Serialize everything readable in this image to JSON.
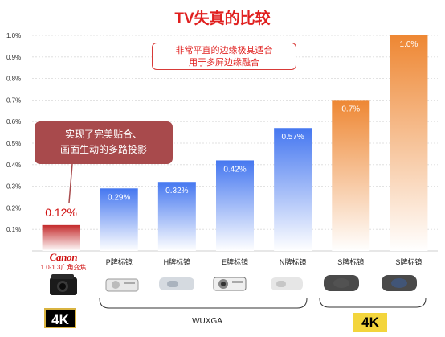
{
  "chart_data": {
    "type": "bar",
    "title": "TV失真的比较",
    "categories": [
      "",
      "P牌标镜",
      "H牌标镜",
      "E牌标镜",
      "N牌标镜",
      "S牌标镜",
      "S牌标镜"
    ],
    "values": [
      0.12,
      0.29,
      0.32,
      0.42,
      0.57,
      0.7,
      1.0
    ],
    "data_labels": [
      "0.12%",
      "0.29%",
      "0.32%",
      "0.42%",
      "0.57%",
      "0.7%",
      "1.0%"
    ],
    "y_ticks": [
      "0.1%",
      "0.2%",
      "0.3%",
      "0.4%",
      "0.5%",
      "0.6%",
      "0.7%",
      "0.8%",
      "0.9%",
      "1.0%"
    ],
    "ylim": [
      0,
      1.0
    ],
    "grid": true,
    "colors": {
      "canon": "#c42b2c",
      "blue": "#4577f0",
      "orange": "#ee8733"
    }
  },
  "callouts": {
    "canon_line1": "实现了完美贴合、",
    "canon_line2": "画面生动的多路投影",
    "flat_line1": "非常平直的边缘极其适合",
    "flat_line2": "用于多屏边缘融合"
  },
  "brand": {
    "logo": "Canon",
    "sub": "1.0-1.3广角变焦"
  },
  "groups": {
    "wuxga": "WUXGA",
    "badge_canon": "4K",
    "badge_s": "4K"
  }
}
